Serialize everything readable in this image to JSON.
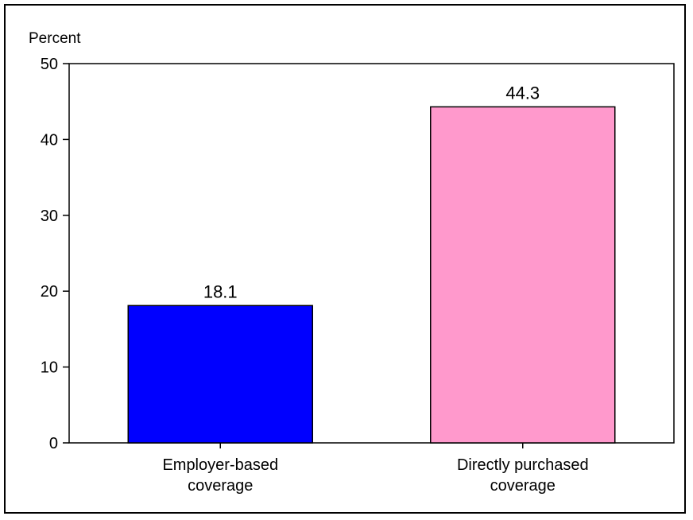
{
  "chart_data": {
    "type": "bar",
    "categories": [
      [
        "Employer-based",
        "coverage"
      ],
      [
        "Directly purchased",
        "coverage"
      ]
    ],
    "values": [
      18.1,
      44.3
    ],
    "value_labels": [
      "18.1",
      "44.3"
    ],
    "bar_colors": [
      "#0000ff",
      "#ff99cc"
    ],
    "title": "",
    "xlabel": "",
    "ylabel": "Percent",
    "ylim": [
      0,
      50
    ],
    "yticks": [
      0,
      10,
      20,
      30,
      40,
      50
    ],
    "grid": false,
    "legend": "none"
  }
}
